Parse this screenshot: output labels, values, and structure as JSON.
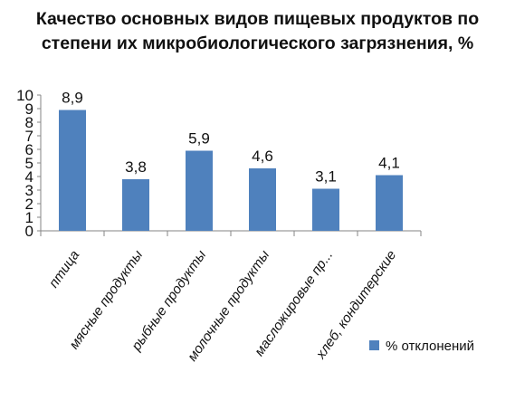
{
  "colors": {
    "bar": "#4F81BD",
    "axis": "#868686",
    "text": "#111111"
  },
  "chart_data": {
    "type": "bar",
    "title_lines": [
      "Качество основных видов пищевых продуктов по",
      "степени их микробиологического загрязнения, %"
    ],
    "categories": [
      "птица",
      "мясные продукты",
      "рыбные продукты",
      "молочные продукты",
      "масложировые пр...",
      "хлеб, кондитерские"
    ],
    "series": [
      {
        "name": "% отклонений",
        "values": [
          8.9,
          3.8,
          5.9,
          4.6,
          3.1,
          4.1
        ]
      }
    ],
    "data_labels": [
      "8,9",
      "3,8",
      "5,9",
      "4,6",
      "3,1",
      "4,1"
    ],
    "y_ticks": [
      "0",
      "1",
      "2",
      "3",
      "4",
      "5",
      "6",
      "7",
      "8",
      "9",
      "10"
    ],
    "ylim": [
      0,
      10
    ],
    "grid": false,
    "legend_position": "bottom-right"
  }
}
